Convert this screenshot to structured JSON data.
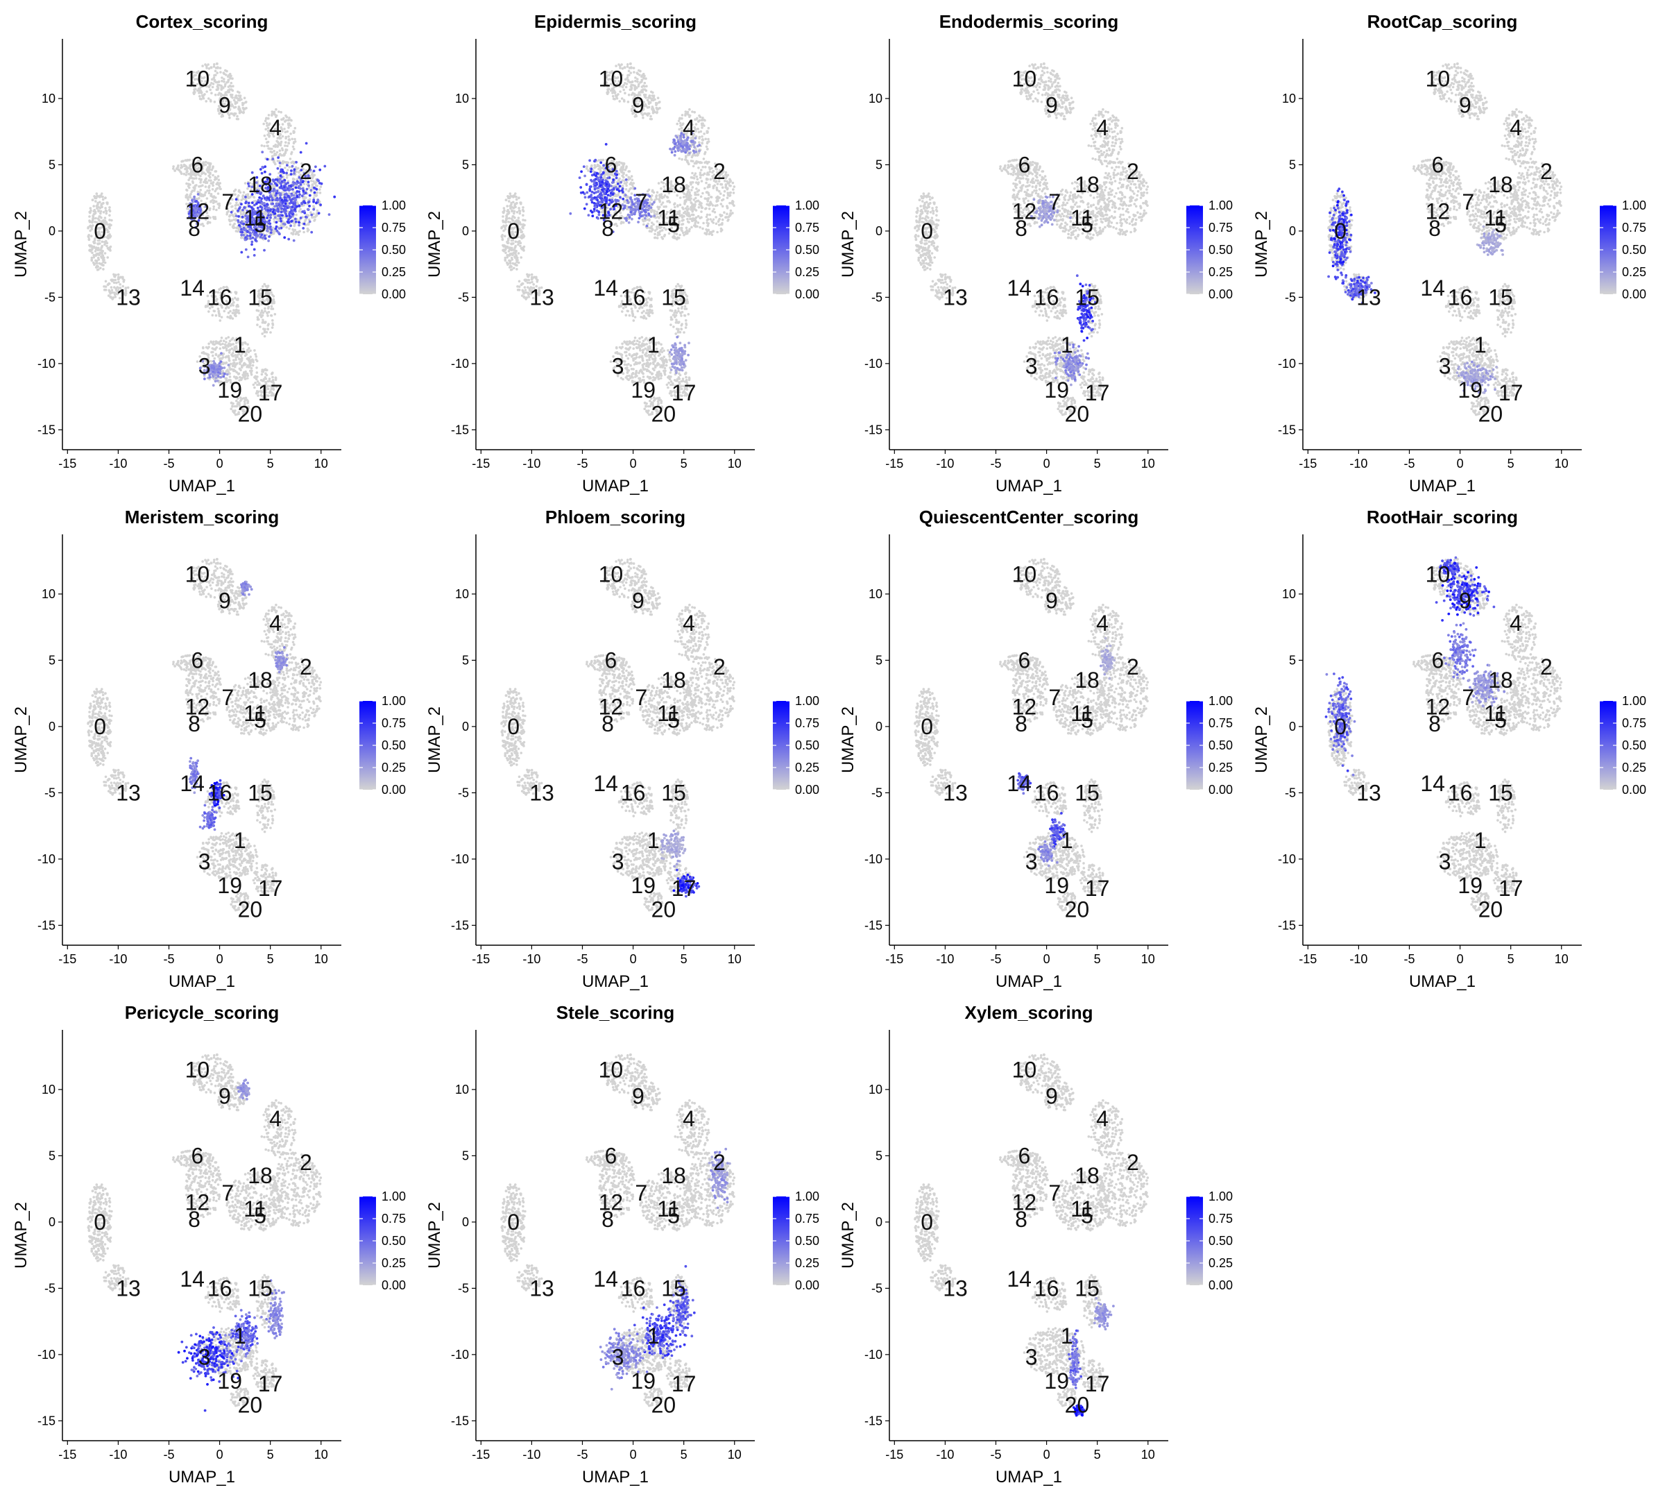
{
  "chart_data": {
    "type": "scatter",
    "xlabel": "UMAP_1",
    "ylabel": "UMAP_2",
    "xticks": [
      -15,
      -10,
      -5,
      0,
      5,
      10
    ],
    "yticks": [
      -15,
      -10,
      -5,
      0,
      5,
      10
    ],
    "xlim": [
      -15.5,
      12
    ],
    "ylim": [
      -16.5,
      14.5
    ],
    "colorbar": {
      "ticks": [
        "0.00",
        "0.25",
        "0.50",
        "0.75",
        "1.00"
      ],
      "low_color": "#d3d3d3",
      "high_color": "#0000ff",
      "range": [
        0,
        1
      ]
    },
    "clusters": [
      {
        "label": "0",
        "x": -11.8,
        "y": 0.0
      },
      {
        "label": "1",
        "x": 2.0,
        "y": -8.6
      },
      {
        "label": "2",
        "x": 8.5,
        "y": 4.5
      },
      {
        "label": "3",
        "x": -1.5,
        "y": -10.2
      },
      {
        "label": "4",
        "x": 5.5,
        "y": 7.8
      },
      {
        "label": "5",
        "x": 4.0,
        "y": 0.5
      },
      {
        "label": "6",
        "x": -2.2,
        "y": 5.0
      },
      {
        "label": "7",
        "x": 0.8,
        "y": 2.2
      },
      {
        "label": "8",
        "x": -2.5,
        "y": 0.2
      },
      {
        "label": "9",
        "x": 0.5,
        "y": 9.5
      },
      {
        "label": "10",
        "x": -2.2,
        "y": 11.5
      },
      {
        "label": "11",
        "x": 3.5,
        "y": 1.0
      },
      {
        "label": "12",
        "x": -2.2,
        "y": 1.5
      },
      {
        "label": "13",
        "x": -9.0,
        "y": -5.0
      },
      {
        "label": "14",
        "x": -2.7,
        "y": -4.3
      },
      {
        "label": "15",
        "x": 4.0,
        "y": -5.0
      },
      {
        "label": "16",
        "x": 0.0,
        "y": -5.0
      },
      {
        "label": "17",
        "x": 5.0,
        "y": -12.2
      },
      {
        "label": "18",
        "x": 4.0,
        "y": 3.5
      },
      {
        "label": "19",
        "x": 1.0,
        "y": -12.0
      },
      {
        "label": "20",
        "x": 3.0,
        "y": -13.8
      }
    ],
    "panels": [
      {
        "title": "Cortex_scoring",
        "high": [
          {
            "x": 6.5,
            "y": 2.5,
            "sx": 2.8,
            "sy": 2.2,
            "v": 0.6
          },
          {
            "x": 3.5,
            "y": 0.5,
            "sx": 1.6,
            "sy": 1.6,
            "v": 0.55
          },
          {
            "x": -2.4,
            "y": 1.5,
            "sx": 0.5,
            "sy": 0.8,
            "v": 0.5
          },
          {
            "x": -0.5,
            "y": -10.5,
            "sx": 1.0,
            "sy": 0.7,
            "v": 0.35
          }
        ]
      },
      {
        "title": "Epidermis_scoring",
        "high": [
          {
            "x": -3.0,
            "y": 3.0,
            "sx": 1.7,
            "sy": 1.8,
            "v": 0.65
          },
          {
            "x": 0.5,
            "y": 1.8,
            "sx": 1.2,
            "sy": 1.0,
            "v": 0.4
          },
          {
            "x": 5.0,
            "y": 6.5,
            "sx": 1.2,
            "sy": 0.6,
            "v": 0.35
          },
          {
            "x": 4.5,
            "y": -9.5,
            "sx": 0.8,
            "sy": 1.0,
            "v": 0.25
          }
        ]
      },
      {
        "title": "Endodermis_scoring",
        "high": [
          {
            "x": 3.8,
            "y": -6.0,
            "sx": 0.6,
            "sy": 1.5,
            "v": 0.7
          },
          {
            "x": 2.5,
            "y": -10.0,
            "sx": 1.2,
            "sy": 1.0,
            "v": 0.35
          },
          {
            "x": 0.0,
            "y": 1.5,
            "sx": 1.0,
            "sy": 1.0,
            "v": 0.25
          }
        ]
      },
      {
        "title": "RootCap_scoring",
        "high": [
          {
            "x": -11.8,
            "y": -0.5,
            "sx": 0.9,
            "sy": 2.6,
            "v": 0.7
          },
          {
            "x": -10.0,
            "y": -4.3,
            "sx": 1.0,
            "sy": 0.8,
            "v": 0.6
          },
          {
            "x": 1.5,
            "y": -11.0,
            "sx": 1.5,
            "sy": 1.0,
            "v": 0.25
          },
          {
            "x": 3.0,
            "y": -1.0,
            "sx": 1.0,
            "sy": 0.8,
            "v": 0.2
          }
        ]
      },
      {
        "title": "Meristem_scoring",
        "high": [
          {
            "x": -0.3,
            "y": -5.0,
            "sx": 0.5,
            "sy": 0.8,
            "v": 0.8
          },
          {
            "x": -1.0,
            "y": -7.0,
            "sx": 0.5,
            "sy": 0.7,
            "v": 0.5
          },
          {
            "x": -2.5,
            "y": -3.5,
            "sx": 0.4,
            "sy": 0.8,
            "v": 0.4
          },
          {
            "x": 6.0,
            "y": 5.0,
            "sx": 0.5,
            "sy": 0.7,
            "v": 0.3
          },
          {
            "x": 2.5,
            "y": 10.5,
            "sx": 0.4,
            "sy": 0.4,
            "v": 0.35
          }
        ]
      },
      {
        "title": "Phloem_scoring",
        "high": [
          {
            "x": 5.2,
            "y": -12.0,
            "sx": 0.8,
            "sy": 0.6,
            "v": 0.75
          },
          {
            "x": 4.0,
            "y": -9.0,
            "sx": 1.0,
            "sy": 1.0,
            "v": 0.2
          }
        ]
      },
      {
        "title": "QuiescentCenter_scoring",
        "high": [
          {
            "x": 1.0,
            "y": -8.0,
            "sx": 0.6,
            "sy": 0.8,
            "v": 0.6
          },
          {
            "x": -2.3,
            "y": -4.2,
            "sx": 0.5,
            "sy": 0.5,
            "v": 0.55
          },
          {
            "x": 0.0,
            "y": -9.5,
            "sx": 0.6,
            "sy": 0.6,
            "v": 0.35
          },
          {
            "x": 6.0,
            "y": 5.0,
            "sx": 0.6,
            "sy": 0.8,
            "v": 0.2
          }
        ]
      },
      {
        "title": "RootHair_scoring",
        "high": [
          {
            "x": 0.5,
            "y": 10.0,
            "sx": 1.8,
            "sy": 1.3,
            "v": 0.75
          },
          {
            "x": -1.0,
            "y": 12.0,
            "sx": 0.8,
            "sy": 0.5,
            "v": 0.7
          },
          {
            "x": -11.8,
            "y": 0.5,
            "sx": 0.9,
            "sy": 2.5,
            "v": 0.55
          },
          {
            "x": 0.0,
            "y": 5.5,
            "sx": 1.0,
            "sy": 1.5,
            "v": 0.45
          },
          {
            "x": 2.5,
            "y": 3.0,
            "sx": 1.2,
            "sy": 1.2,
            "v": 0.3
          }
        ]
      },
      {
        "title": "Pericycle_scoring",
        "high": [
          {
            "x": -0.8,
            "y": -10.0,
            "sx": 2.0,
            "sy": 1.6,
            "v": 0.7
          },
          {
            "x": 2.5,
            "y": -8.5,
            "sx": 1.2,
            "sy": 1.2,
            "v": 0.55
          },
          {
            "x": 5.5,
            "y": -7.0,
            "sx": 0.6,
            "sy": 1.5,
            "v": 0.35
          },
          {
            "x": 2.5,
            "y": 10.0,
            "sx": 0.5,
            "sy": 0.5,
            "v": 0.3
          }
        ]
      },
      {
        "title": "Stele_scoring",
        "high": [
          {
            "x": 2.8,
            "y": -8.5,
            "sx": 1.6,
            "sy": 1.5,
            "v": 0.65
          },
          {
            "x": 4.8,
            "y": -6.5,
            "sx": 0.8,
            "sy": 1.5,
            "v": 0.55
          },
          {
            "x": -1.0,
            "y": -10.0,
            "sx": 1.8,
            "sy": 1.4,
            "v": 0.35
          },
          {
            "x": 8.5,
            "y": 3.5,
            "sx": 0.8,
            "sy": 1.5,
            "v": 0.3
          }
        ]
      },
      {
        "title": "Xylem_scoring",
        "high": [
          {
            "x": 3.2,
            "y": -14.2,
            "sx": 0.4,
            "sy": 0.3,
            "v": 0.9
          },
          {
            "x": 2.8,
            "y": -10.5,
            "sx": 0.4,
            "sy": 1.8,
            "v": 0.5
          },
          {
            "x": 5.5,
            "y": -7.0,
            "sx": 0.6,
            "sy": 1.0,
            "v": 0.3
          }
        ]
      }
    ]
  }
}
